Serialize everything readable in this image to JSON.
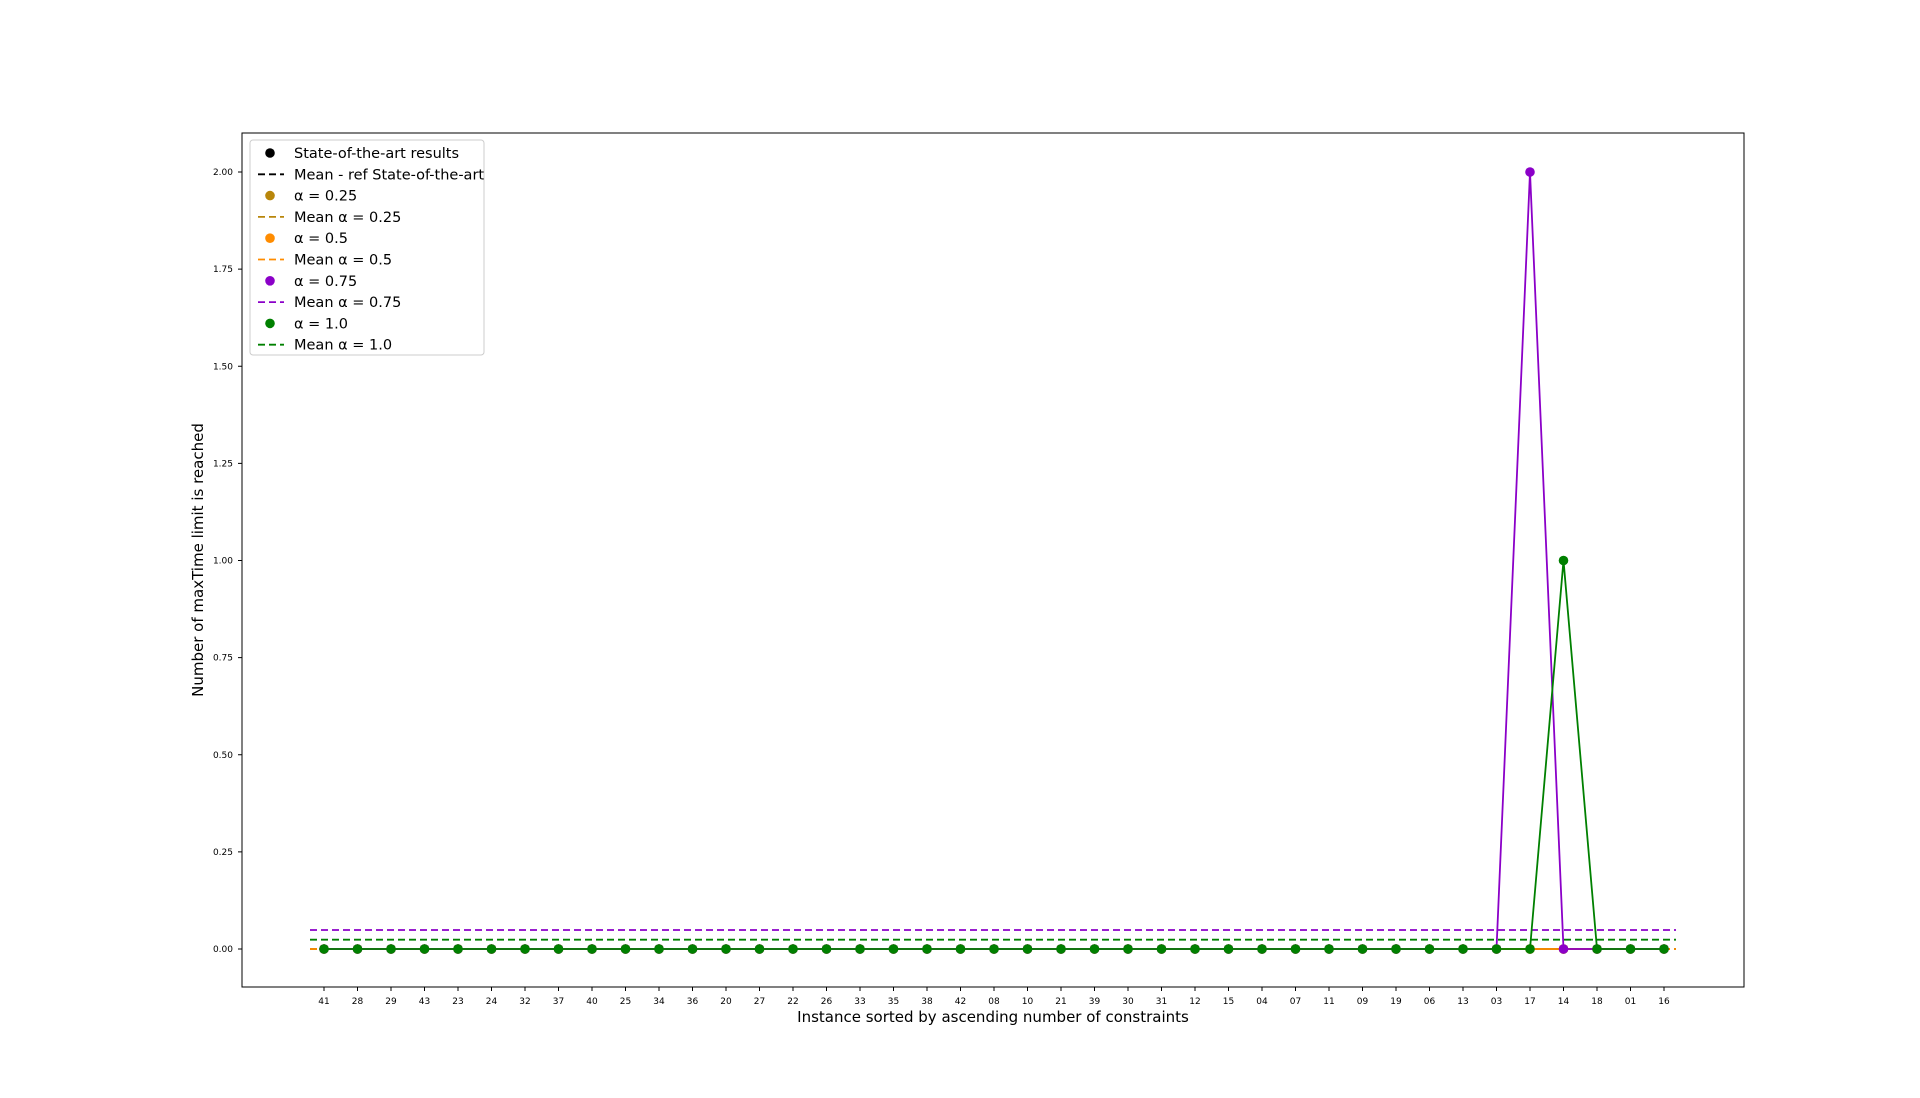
{
  "chart_data": {
    "type": "line",
    "xlabel": "Instance sorted by ascending number of constraints",
    "ylabel": "Number of maxTime limit is reached",
    "categories": [
      "41",
      "28",
      "29",
      "43",
      "23",
      "24",
      "32",
      "37",
      "40",
      "25",
      "34",
      "36",
      "20",
      "27",
      "22",
      "26",
      "33",
      "35",
      "38",
      "42",
      "08",
      "10",
      "21",
      "39",
      "30",
      "31",
      "12",
      "15",
      "04",
      "07",
      "11",
      "09",
      "19",
      "06",
      "13",
      "03",
      "17",
      "14",
      "18",
      "01",
      "16"
    ],
    "ylim": [
      -0.05,
      2.1
    ],
    "yticks": [
      "0.00",
      "0.25",
      "0.50",
      "0.75",
      "1.00",
      "1.25",
      "1.50",
      "1.75",
      "2.00"
    ],
    "grid": false,
    "legend_position": "top-left",
    "series": [
      {
        "name": "State-of-the-art results",
        "color": "#000000",
        "values": [
          0,
          0,
          0,
          0,
          0,
          0,
          0,
          0,
          0,
          0,
          0,
          0,
          0,
          0,
          0,
          0,
          0,
          0,
          0,
          0,
          0,
          0,
          0,
          0,
          0,
          0,
          0,
          0,
          0,
          0,
          0,
          0,
          0,
          0,
          0,
          0,
          0,
          0,
          0,
          0,
          0
        ]
      },
      {
        "name": "α = 0.25",
        "color": "#b8860b",
        "values": [
          0,
          0,
          0,
          0,
          0,
          0,
          0,
          0,
          0,
          0,
          0,
          0,
          0,
          0,
          0,
          0,
          0,
          0,
          0,
          0,
          0,
          0,
          0,
          0,
          0,
          0,
          0,
          0,
          0,
          0,
          0,
          0,
          0,
          0,
          0,
          0,
          0,
          0,
          0,
          0,
          0
        ]
      },
      {
        "name": "α = 0.5",
        "color": "#ff8c00",
        "values": [
          0,
          0,
          0,
          0,
          0,
          0,
          0,
          0,
          0,
          0,
          0,
          0,
          0,
          0,
          0,
          0,
          0,
          0,
          0,
          0,
          0,
          0,
          0,
          0,
          0,
          0,
          0,
          0,
          0,
          0,
          0,
          0,
          0,
          0,
          0,
          0,
          0,
          0,
          0,
          0,
          0
        ]
      },
      {
        "name": "α = 0.75",
        "color": "#8b00c8",
        "values": [
          0,
          0,
          0,
          0,
          0,
          0,
          0,
          0,
          0,
          0,
          0,
          0,
          0,
          0,
          0,
          0,
          0,
          0,
          0,
          0,
          0,
          0,
          0,
          0,
          0,
          0,
          0,
          0,
          0,
          0,
          0,
          0,
          0,
          0,
          0,
          0,
          2,
          0,
          0,
          0,
          0
        ]
      },
      {
        "name": "α = 1.0",
        "color": "#008000",
        "values": [
          0,
          0,
          0,
          0,
          0,
          0,
          0,
          0,
          0,
          0,
          0,
          0,
          0,
          0,
          0,
          0,
          0,
          0,
          0,
          0,
          0,
          0,
          0,
          0,
          0,
          0,
          0,
          0,
          0,
          0,
          0,
          0,
          0,
          0,
          0,
          0,
          0,
          1,
          0,
          0,
          0
        ]
      }
    ],
    "means": [
      {
        "name": "Mean - ref State-of-the-art",
        "color": "#000000",
        "value": 0.0
      },
      {
        "name": "Mean α = 0.25",
        "color": "#b8860b",
        "value": 0.0
      },
      {
        "name": "Mean α = 0.5",
        "color": "#ff8c00",
        "value": 0.0
      },
      {
        "name": "Mean α = 0.75",
        "color": "#8b00c8",
        "value": 0.049
      },
      {
        "name": "Mean α = 1.0",
        "color": "#008000",
        "value": 0.024
      }
    ],
    "legend": [
      {
        "label": "State-of-the-art results",
        "kind": "marker",
        "color": "#000000"
      },
      {
        "label": "Mean - ref State-of-the-art",
        "kind": "dash",
        "color": "#000000"
      },
      {
        "label": "α = 0.25",
        "kind": "marker",
        "color": "#b8860b"
      },
      {
        "label": "Mean α = 0.25",
        "kind": "dash",
        "color": "#b8860b"
      },
      {
        "label": "α = 0.5",
        "kind": "marker",
        "color": "#ff8c00"
      },
      {
        "label": "Mean α = 0.5",
        "kind": "dash",
        "color": "#ff8c00"
      },
      {
        "label": "α = 0.75",
        "kind": "marker",
        "color": "#8b00c8"
      },
      {
        "label": "Mean α = 0.75",
        "kind": "dash",
        "color": "#8b00c8"
      },
      {
        "label": "α = 1.0",
        "kind": "marker",
        "color": "#008000"
      },
      {
        "label": "Mean α = 1.0",
        "kind": "dash",
        "color": "#008000"
      }
    ]
  }
}
